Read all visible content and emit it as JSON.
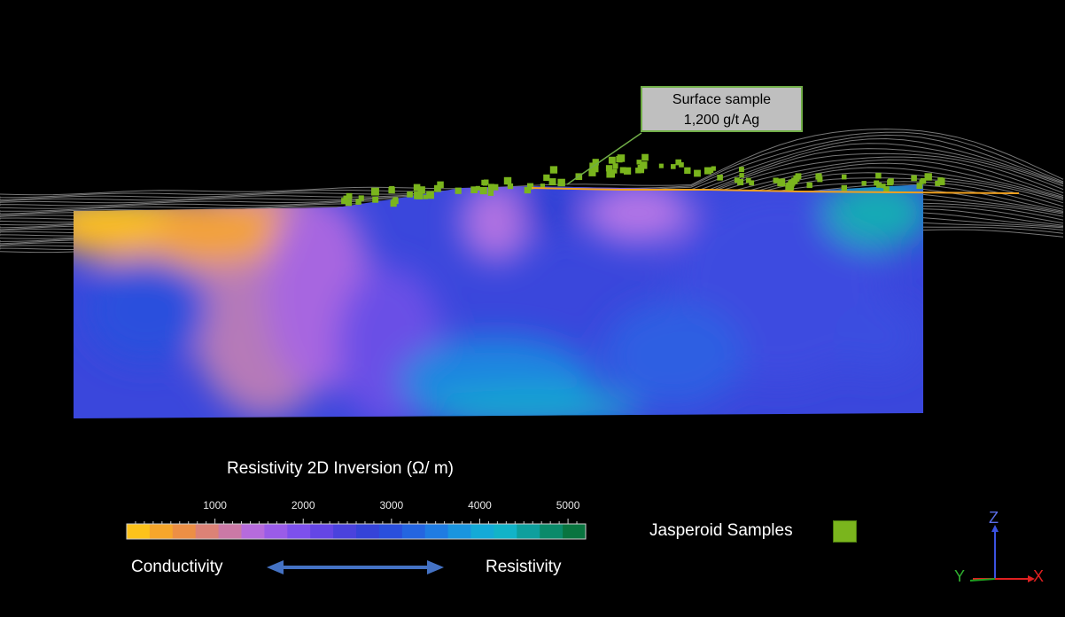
{
  "callout": {
    "line1": "Surface sample",
    "line2": "1,200 g/t Ag"
  },
  "colorbar": {
    "title": "Resistivity 2D Inversion (Ω/ m)",
    "ticks": [
      1000,
      2000,
      3000,
      4000,
      5000
    ],
    "range": [
      0,
      5200
    ],
    "colors": [
      "#fcc21b",
      "#f6a62b",
      "#ec8f45",
      "#dc8276",
      "#cb79a6",
      "#b66bdc",
      "#9a5ce8",
      "#7d50ec",
      "#6446e5",
      "#4a42dd",
      "#3543d8",
      "#2a4fdc",
      "#2465e0",
      "#1f7ce2",
      "#1a95df",
      "#14aad7",
      "#12b3c8",
      "#0e9f9d",
      "#0a8a6a",
      "#08743f"
    ]
  },
  "labels": {
    "conductivity": "Conductivity",
    "resistivity": "Resistivity"
  },
  "legend": {
    "label": "Jasperoid Samples",
    "color": "#7ab51d"
  },
  "axes": {
    "z": "Z",
    "y": "Y",
    "x": "X"
  }
}
